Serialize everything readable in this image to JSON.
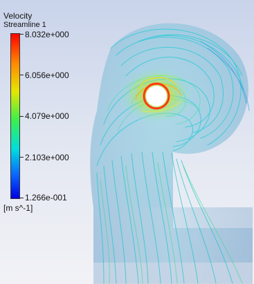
{
  "legend": {
    "title": "Velocity",
    "subtitle": "Streamline 1",
    "ticks": [
      "8.032e+000",
      "6.056e+000",
      "4.079e+000",
      "2.103e+000",
      "1.266e-001"
    ],
    "unit": "[m s^-1]",
    "colors": [
      "#ff0000",
      "#ff8a00",
      "#e6e600",
      "#3ef04a",
      "#00dede",
      "#0a64ff",
      "#0000e0"
    ]
  }
}
